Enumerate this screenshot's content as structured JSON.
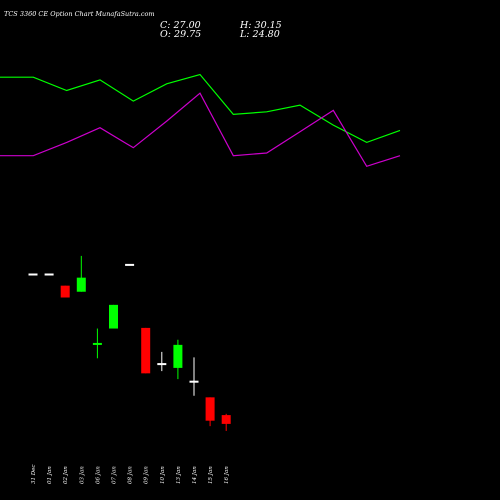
{
  "header": {
    "title": "TCS 3360 CE Option Chart MunafaSutra.com",
    "open_label": "O:",
    "open_value": "29.75",
    "close_label": "C:",
    "close_value": "27.00",
    "high_label": "H:",
    "high_value": "30.15",
    "low_label": "L:",
    "low_value": "24.80"
  },
  "colors": {
    "background": "#000000",
    "up": "#00ff00",
    "down": "#ff0000",
    "neutral": "#ffffff",
    "line_green": "#00ff00",
    "line_magenta": "#cc00cc"
  },
  "chart_data": {
    "type": "candlestick",
    "categories": [
      "31 Dec",
      "01 Jan",
      "02 Jan",
      "03 Jan",
      "06 Jan",
      "07 Jan",
      "08 Jan",
      "09 Jan",
      "10 Jan",
      "13 Jan",
      "14 Jan",
      "15 Jan",
      "16 Jan"
    ],
    "ohlc": [
      {
        "o": 74.0,
        "h": 74.0,
        "l": 74.0,
        "c": 74.0
      },
      {
        "o": 70.2,
        "h": 70.2,
        "l": 66.5,
        "c": 66.5
      },
      {
        "o": 68.3,
        "h": 79.5,
        "l": 68.3,
        "c": 72.7
      },
      {
        "o": 52.0,
        "h": 56.8,
        "l": 47.5,
        "c": 52.3
      },
      {
        "o": 56.8,
        "h": 64.2,
        "l": 56.8,
        "c": 64.2
      },
      {
        "o": 77.0,
        "h": 77.0,
        "l": 77.0,
        "c": 77.0
      },
      {
        "o": 57.0,
        "h": 57.0,
        "l": 42.8,
        "c": 42.8
      },
      {
        "o": 46.0,
        "h": 49.5,
        "l": 43.5,
        "c": 46.0
      },
      {
        "o": 44.5,
        "h": 53.3,
        "l": 41.0,
        "c": 51.7
      },
      {
        "o": 40.5,
        "h": 47.8,
        "l": 35.8,
        "c": 40.5
      },
      {
        "o": 35.3,
        "h": 35.3,
        "l": 26.3,
        "c": 28.0
      },
      {
        "o": 29.75,
        "h": 30.15,
        "l": 24.8,
        "c": 27.0
      }
    ],
    "ohlc_offset": 1,
    "first_candle": {
      "o": 74.0,
      "h": 74.0,
      "l": 74.0,
      "c": 74.0
    },
    "lines": [
      {
        "color": "#00ff00",
        "values": [
          160,
          160,
          150,
          158,
          142,
          155,
          162,
          132,
          134,
          139,
          124,
          111,
          120
        ]
      },
      {
        "color": "#cc00cc",
        "values": [
          101,
          101,
          111,
          122,
          107,
          127,
          148,
          101,
          103,
          119,
          135,
          93,
          101
        ]
      }
    ],
    "grid": false,
    "legend": "none"
  }
}
